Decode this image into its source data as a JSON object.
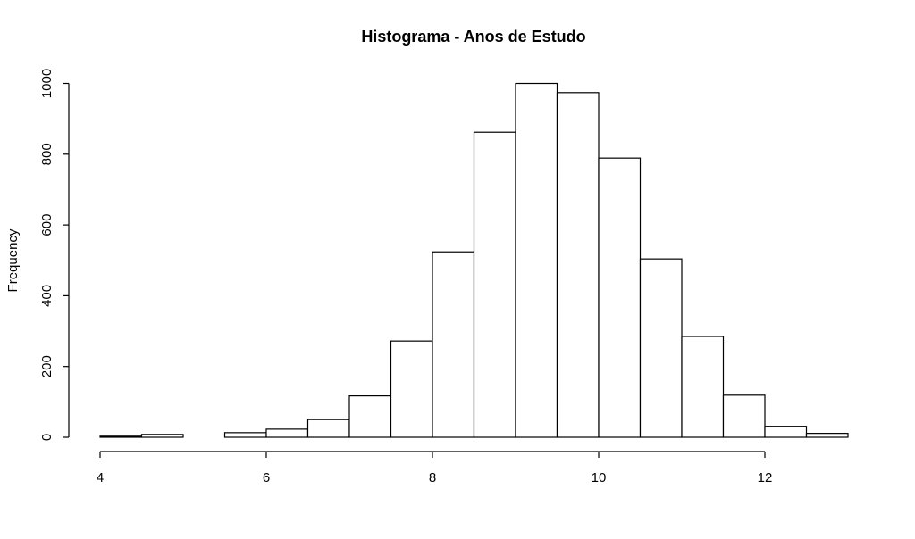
{
  "chart_data": {
    "type": "bar",
    "title": "Histograma - Anos de Estudo",
    "xlabel": "",
    "ylabel": "Frequency",
    "xlim": [
      4,
      13
    ],
    "ylim": [
      0,
      1000
    ],
    "bin_width": 0.5,
    "bins": [
      {
        "x0": 4.0,
        "x1": 4.5,
        "value": 3
      },
      {
        "x0": 4.5,
        "x1": 5.0,
        "value": 8
      },
      {
        "x0": 5.0,
        "x1": 5.5,
        "value": 0
      },
      {
        "x0": 5.5,
        "x1": 6.0,
        "value": 13
      },
      {
        "x0": 6.0,
        "x1": 6.5,
        "value": 23
      },
      {
        "x0": 6.5,
        "x1": 7.0,
        "value": 50
      },
      {
        "x0": 7.0,
        "x1": 7.5,
        "value": 117
      },
      {
        "x0": 7.5,
        "x1": 8.0,
        "value": 272
      },
      {
        "x0": 8.0,
        "x1": 8.5,
        "value": 524
      },
      {
        "x0": 8.5,
        "x1": 9.0,
        "value": 862
      },
      {
        "x0": 9.0,
        "x1": 9.5,
        "value": 1000
      },
      {
        "x0": 9.5,
        "x1": 10.0,
        "value": 974
      },
      {
        "x0": 10.0,
        "x1": 10.5,
        "value": 789
      },
      {
        "x0": 10.5,
        "x1": 11.0,
        "value": 504
      },
      {
        "x0": 11.0,
        "x1": 11.5,
        "value": 285
      },
      {
        "x0": 11.5,
        "x1": 12.0,
        "value": 119
      },
      {
        "x0": 12.0,
        "x1": 12.5,
        "value": 31
      },
      {
        "x0": 12.5,
        "x1": 13.0,
        "value": 11
      }
    ],
    "x_ticks": [
      4,
      6,
      8,
      10,
      12
    ],
    "y_ticks": [
      0,
      200,
      400,
      600,
      800,
      1000
    ],
    "grid": false,
    "bar_fill": "#ffffff",
    "bar_stroke": "#000000"
  }
}
